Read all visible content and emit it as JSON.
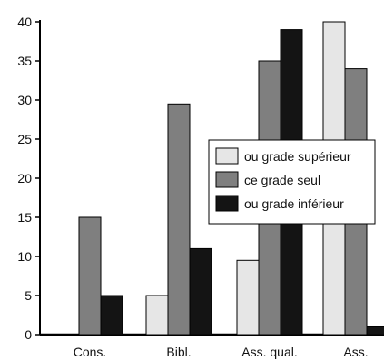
{
  "chart_data": {
    "type": "bar",
    "categories": [
      "Cons.",
      "Bibl.",
      "Ass. qual.",
      "Ass."
    ],
    "series": [
      {
        "name": "ou grade supérieur",
        "color": "#e6e6e6",
        "values": [
          0,
          5,
          9.5,
          40
        ]
      },
      {
        "name": "ce grade seul",
        "color": "#7f7f7f",
        "values": [
          15,
          29.5,
          35,
          34
        ]
      },
      {
        "name": "ou grade inférieur",
        "color": "#141414",
        "values": [
          5,
          11,
          39,
          1
        ]
      }
    ],
    "ylim": [
      0,
      40
    ],
    "yticks": [
      "0",
      "5",
      "10",
      "15",
      "20",
      "25",
      "30",
      "35",
      "40"
    ],
    "grid": false,
    "legend_position": "right-center",
    "title": "",
    "xlabel": "",
    "ylabel": ""
  }
}
